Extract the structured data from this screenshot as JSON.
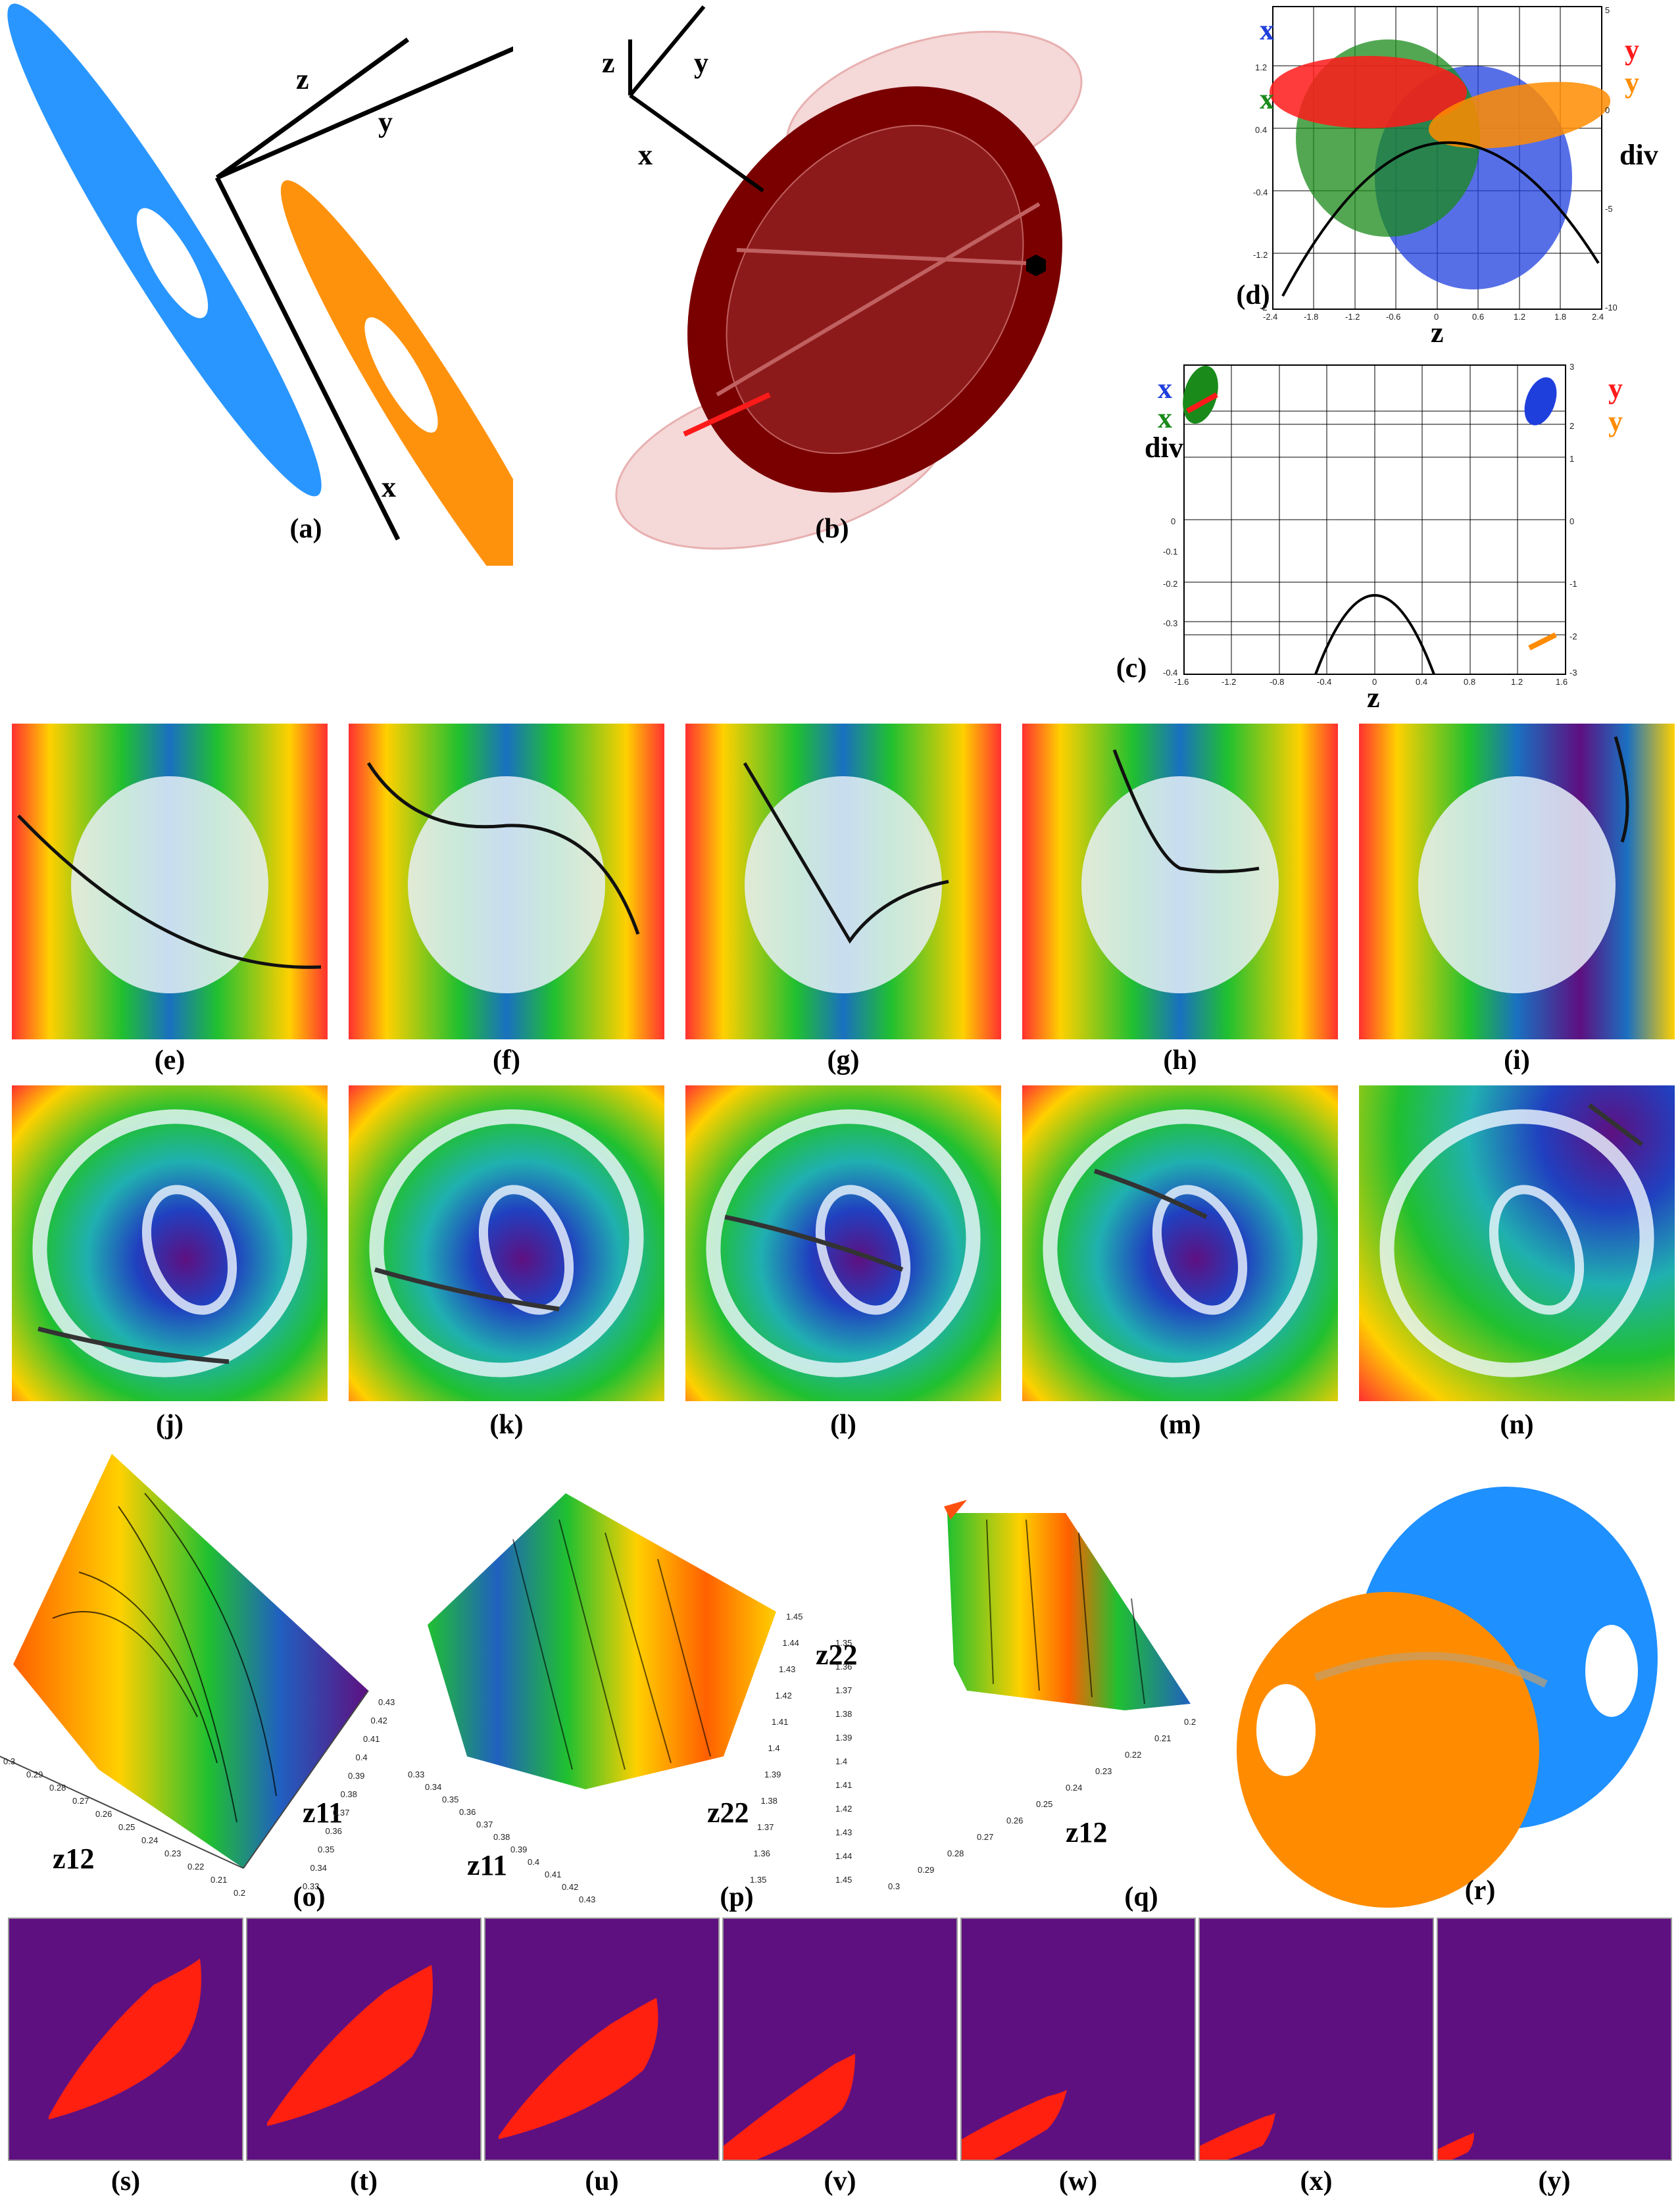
{
  "captions": {
    "a": "(a)",
    "b": "(b)",
    "c": "(c)",
    "d": "(d)",
    "e": "(e)",
    "f": "(f)",
    "g": "(g)",
    "h": "(h)",
    "i": "(i)",
    "j": "(j)",
    "k": "(k)",
    "l": "(l)",
    "m": "(m)",
    "n": "(n)",
    "o": "(o)",
    "p": "(p)",
    "q": "(q)",
    "r": "(r)",
    "s": "(s)",
    "t": "(t)",
    "u": "(u)",
    "v": "(v)",
    "w": "(w)",
    "x": "(x)",
    "y": "(y)"
  },
  "panel_a": {
    "axis_z": "z",
    "axis_y": "y",
    "axis_x": "x"
  },
  "panel_b": {
    "axis_z": "z",
    "axis_y": "y",
    "axis_x": "x"
  },
  "panel_d": {
    "left_labels": [
      "x",
      "x"
    ],
    "right_labels": [
      "y",
      "y"
    ],
    "div_label": "div",
    "xaxis_label": "z",
    "x_ticks": [
      "-2.4",
      "-1.8",
      "-1.2",
      "-0.6",
      "0",
      "0.6",
      "1.2",
      "1.8",
      "2.4"
    ],
    "left_ticks": [
      "1.2",
      "0.4",
      "-0.4",
      "-1.2",
      "-2"
    ],
    "right_ticks": [
      "5",
      "0",
      "-5",
      "-10"
    ]
  },
  "panel_c": {
    "left_labels": [
      "x",
      "x"
    ],
    "right_labels": [
      "y",
      "y"
    ],
    "div_label": "div",
    "xaxis_label": "z",
    "x_ticks": [
      "-1.6",
      "-1.2",
      "-0.8",
      "-0.4",
      "0",
      "0.4",
      "0.8",
      "1.2",
      "1.6"
    ],
    "left_ticks": [
      "0",
      "-0.1",
      "-0.2",
      "-0.3",
      "-0.4"
    ],
    "right_ticks": [
      "3",
      "2",
      "1",
      "0",
      "-1",
      "-2",
      "-3"
    ]
  },
  "panel_o": {
    "axis_a": "z12",
    "axis_b": "z11",
    "ticks_a": [
      "0.3",
      "0.29",
      "0.28",
      "0.27",
      "0.26",
      "0.25",
      "0.24",
      "0.23",
      "0.22",
      "0.21",
      "0.2"
    ],
    "ticks_b": [
      "0.43",
      "0.42",
      "0.41",
      "0.4",
      "0.39",
      "0.38",
      "0.37",
      "0.36",
      "0.35",
      "0.34",
      "0.33"
    ]
  },
  "panel_p": {
    "axis_a": "z11",
    "axis_b": "z22",
    "ticks_a": [
      "0.33",
      "0.34",
      "0.35",
      "0.36",
      "0.37",
      "0.38",
      "0.39",
      "0.4",
      "0.41",
      "0.42",
      "0.43"
    ],
    "ticks_b": [
      "1.45",
      "1.44",
      "1.43",
      "1.42",
      "1.41",
      "1.4",
      "1.39",
      "1.38",
      "1.37",
      "1.36",
      "1.35"
    ]
  },
  "panel_q": {
    "axis_a": "z22",
    "axis_b": "z12",
    "ticks_a": [
      "1.35",
      "1.36",
      "1.37",
      "1.38",
      "1.39",
      "1.4",
      "1.41",
      "1.42",
      "1.43",
      "1.44",
      "1.45"
    ],
    "ticks_b": [
      "0.3",
      "0.29",
      "0.28",
      "0.27",
      "0.26",
      "0.25",
      "0.24",
      "0.23",
      "0.22",
      "0.21",
      "0.2"
    ]
  },
  "colors": {
    "blue": "#1e90ff",
    "orange": "#ff8c00",
    "darkred": "#7a0000",
    "red": "#ff1a1a",
    "green": "#1a8a1a",
    "purple": "#5e1080",
    "fill_red": "#ff2010"
  }
}
